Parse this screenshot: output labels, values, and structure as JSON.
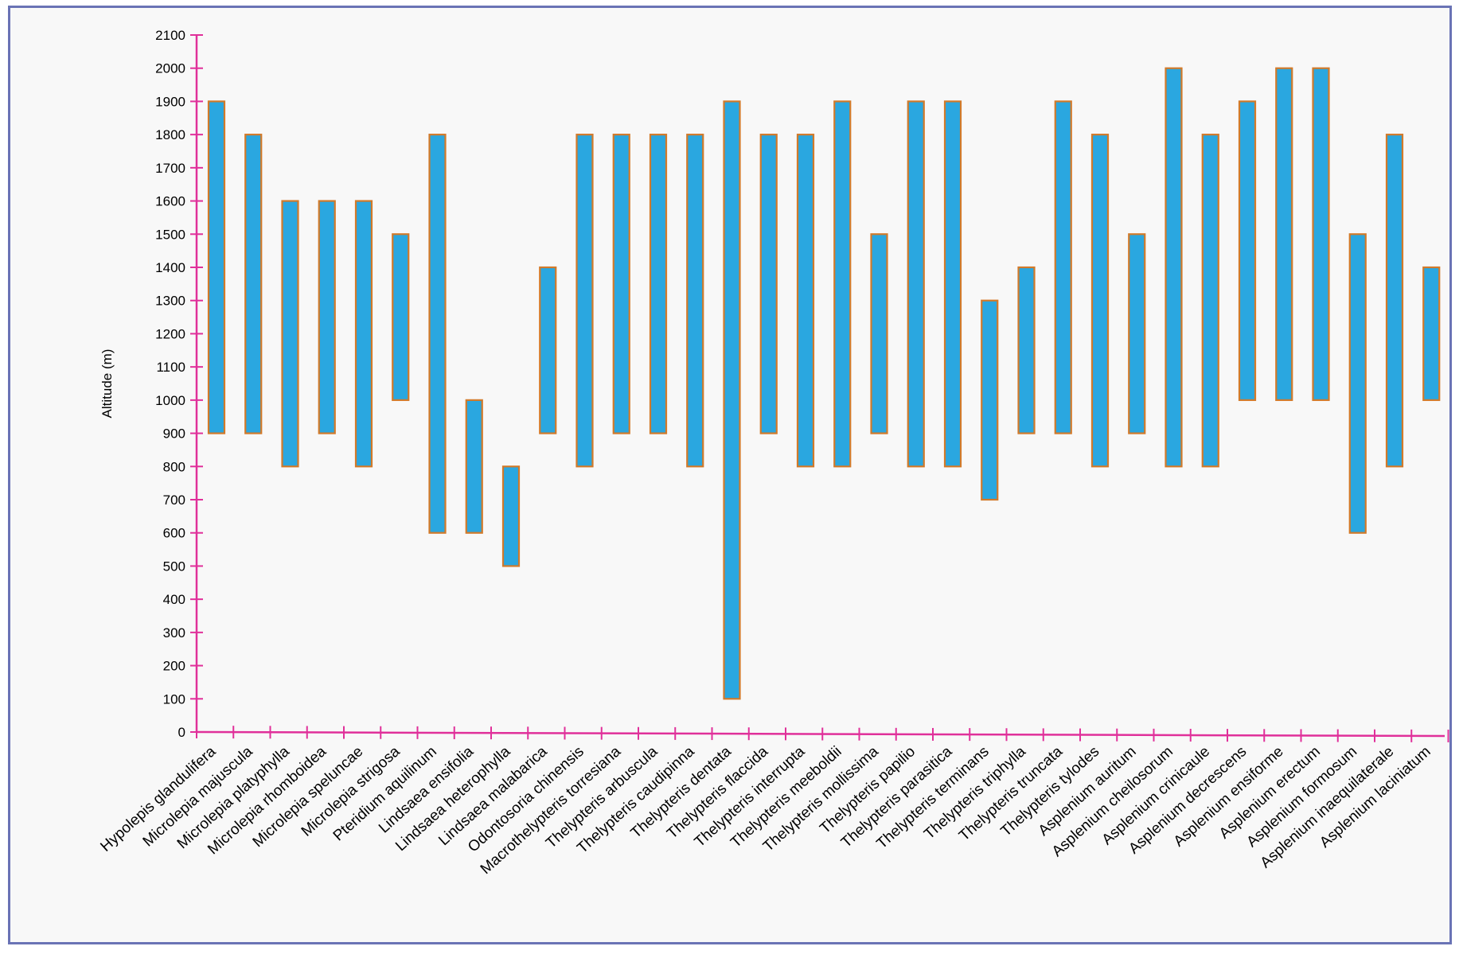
{
  "chart_data": {
    "type": "bar",
    "subtype": "floating-range",
    "title": "",
    "xlabel": "",
    "ylabel": "Altitude (m)",
    "ylim": [
      0,
      2100
    ],
    "yticks": [
      0,
      100,
      200,
      300,
      400,
      500,
      600,
      700,
      800,
      900,
      1000,
      1100,
      1200,
      1300,
      1400,
      1500,
      1600,
      1700,
      1800,
      1900,
      2000,
      2100
    ],
    "grid": false,
    "legend": "none",
    "colors": {
      "bar_fill": "#2aa7e0",
      "bar_edge": "#d27a2a",
      "axis": "#e0309a",
      "frame": "#6a73b5"
    },
    "categories": [
      "Hypolepis glandulifera",
      "Microlepia majuscula",
      "Microlepia platyphylla",
      "Microlepia rhomboidea",
      "Microlepia speluncae",
      "Microlepia strigosa",
      "Pteridium aquilinum",
      "Lindsaea ensifolia",
      "Lindsaea heterophylla",
      "Lindsaea malabarica",
      "Odontosoria chinensis",
      "Macrothelypteris torresiana",
      "Thelypteris arbuscula",
      "Thelypteris caudipinna",
      "Thelypteris dentata",
      "Thelypteris flaccida",
      "Thelypteris interrupta",
      "Thelypteris meeboldii",
      "Thelypteris mollissima",
      "Thelypteris papilio",
      "Thelypteris parasitica",
      "Thelypteris terminans",
      "Thelypteris triphylla",
      "Thelypteris truncata",
      "Thelypteris tylodes",
      "Asplenium auritum",
      "Asplenium cheilosorum",
      "Asplenium crinicaule",
      "Asplenium decrescens",
      "Asplenium ensiforme",
      "Asplenium erectum",
      "Asplenium formosum",
      "Asplenium inaequilaterale",
      "Asplenium laciniatum"
    ],
    "ranges": [
      [
        900,
        1900
      ],
      [
        900,
        1800
      ],
      [
        800,
        1600
      ],
      [
        900,
        1600
      ],
      [
        800,
        1600
      ],
      [
        1000,
        1500
      ],
      [
        600,
        1800
      ],
      [
        600,
        1000
      ],
      [
        500,
        800
      ],
      [
        900,
        1400
      ],
      [
        800,
        1800
      ],
      [
        900,
        1800
      ],
      [
        900,
        1800
      ],
      [
        800,
        1800
      ],
      [
        100,
        1900
      ],
      [
        900,
        1800
      ],
      [
        800,
        1800
      ],
      [
        800,
        1900
      ],
      [
        900,
        1500
      ],
      [
        800,
        1900
      ],
      [
        800,
        1900
      ],
      [
        700,
        1300
      ],
      [
        900,
        1400
      ],
      [
        900,
        1900
      ],
      [
        800,
        1800
      ],
      [
        900,
        1500
      ],
      [
        800,
        2000
      ],
      [
        800,
        1800
      ],
      [
        1000,
        1900
      ],
      [
        1000,
        2000
      ],
      [
        1000,
        2000
      ],
      [
        600,
        1500
      ],
      [
        800,
        1800
      ],
      [
        1000,
        1400
      ]
    ]
  }
}
